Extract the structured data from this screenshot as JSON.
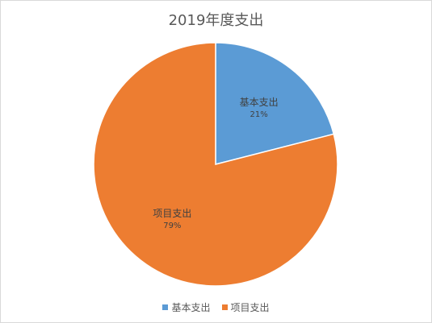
{
  "chart_data": {
    "type": "pie",
    "title": "2019年度支出",
    "categories": [
      "基本支出",
      "项目支出"
    ],
    "values": [
      21,
      79
    ],
    "labels": [
      "21%",
      "79%"
    ],
    "colors": [
      "#5b9bd5",
      "#ed7d31"
    ],
    "legend_position": "bottom"
  }
}
